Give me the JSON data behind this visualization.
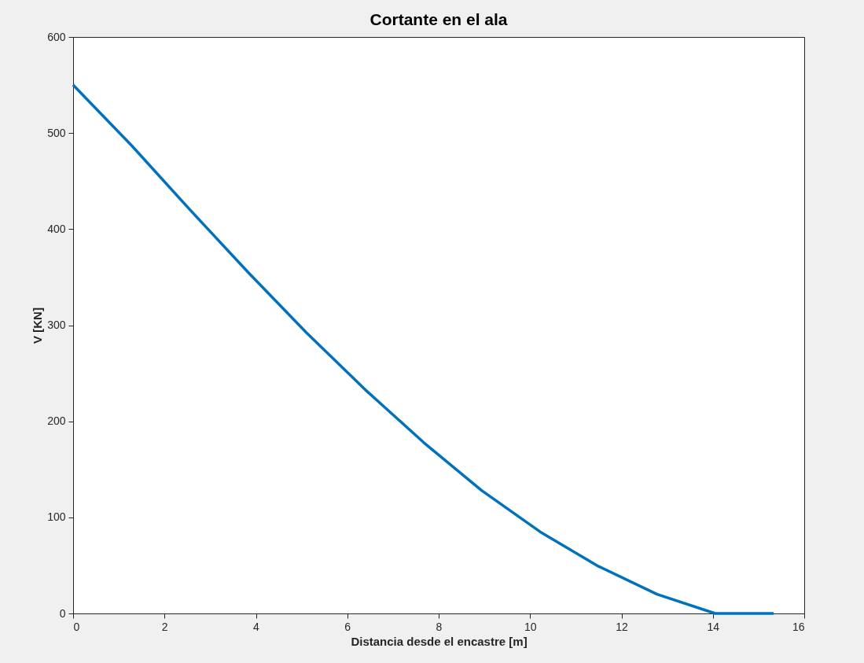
{
  "chart_data": {
    "type": "line",
    "title": "Cortante en el ala",
    "xlabel": "Distancia desde el encastre [m]",
    "ylabel": "V [KN]",
    "x": [
      0,
      1.28,
      2.56,
      3.83,
      5.11,
      6.39,
      7.67,
      8.94,
      10.22,
      11.5,
      12.78,
      14.05,
      15.33
    ],
    "series": [
      {
        "color": "#0072bd",
        "values": [
          550,
          487,
          420,
          355,
          292,
          233,
          178,
          128,
          85,
          49,
          20,
          0,
          0
        ]
      }
    ],
    "xlim": [
      0,
      16
    ],
    "xticks": [
      0,
      2,
      4,
      6,
      8,
      10,
      12,
      14,
      16
    ],
    "ylim": [
      0,
      600
    ],
    "yticks": [
      0,
      100,
      200,
      300,
      400,
      500,
      600
    ],
    "grid": false,
    "marker": "none",
    "line_style": "solid"
  }
}
